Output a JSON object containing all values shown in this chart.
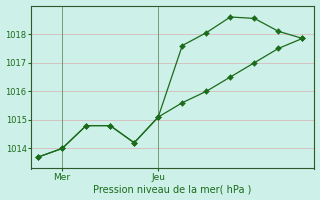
{
  "line1_x": [
    0,
    1,
    2,
    3,
    4,
    5,
    6,
    7,
    8,
    9,
    10,
    11
  ],
  "line1_y": [
    1013.7,
    1014.0,
    1014.8,
    1014.8,
    1014.2,
    1015.1,
    1015.6,
    1016.0,
    1016.5,
    1017.0,
    1017.5,
    1017.85
  ],
  "line2_x": [
    0,
    1,
    2,
    3,
    4,
    5,
    6,
    7,
    8,
    9,
    10,
    11
  ],
  "line2_y": [
    1013.7,
    1014.0,
    1014.8,
    1014.8,
    1014.2,
    1015.1,
    1017.6,
    1018.05,
    1018.6,
    1018.55,
    1018.1,
    1017.85
  ],
  "line_color": "#1a6b1a",
  "bg_color": "#cdf0e8",
  "grid_color": "#d8b0b0",
  "vline_color": "#7a9a7a",
  "spine_color": "#2d5a2d",
  "xlabel": "Pression niveau de la mer( hPa )",
  "mer_x": 1,
  "jeu_x": 5,
  "xlim_min": -0.3,
  "xlim_max": 11.5,
  "ylim_min": 1013.3,
  "ylim_max": 1019.0,
  "yticks": [
    1014,
    1015,
    1016,
    1017,
    1018
  ],
  "ytick_fontsize": 6,
  "xtick_fontsize": 6.5,
  "xlabel_fontsize": 7,
  "marker_size": 3
}
